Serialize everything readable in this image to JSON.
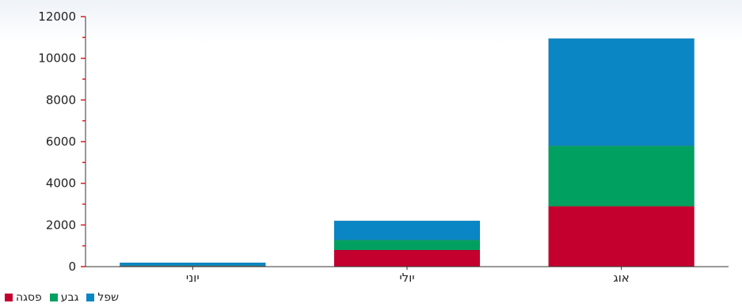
{
  "chart_data": {
    "type": "bar",
    "stacked": true,
    "categories": [
      "יוני",
      "יולי",
      "אוג"
    ],
    "series": [
      {
        "name": "פסגה",
        "color": "#c4002f",
        "values": [
          30,
          800,
          2900
        ]
      },
      {
        "name": "גבע",
        "color": "#00a060",
        "values": [
          20,
          480,
          2900
        ]
      },
      {
        "name": "שפל",
        "color": "#0a86c4",
        "values": [
          140,
          920,
          5150
        ]
      }
    ],
    "ylim": [
      0,
      12000
    ],
    "yticks": [
      0,
      2000,
      4000,
      6000,
      8000,
      10000,
      12000
    ],
    "ytick_labels": [
      "0",
      "2000",
      "4000",
      "6000",
      "8000",
      "10000",
      "12000"
    ],
    "grid": false,
    "legend_position": "bottom-left"
  }
}
